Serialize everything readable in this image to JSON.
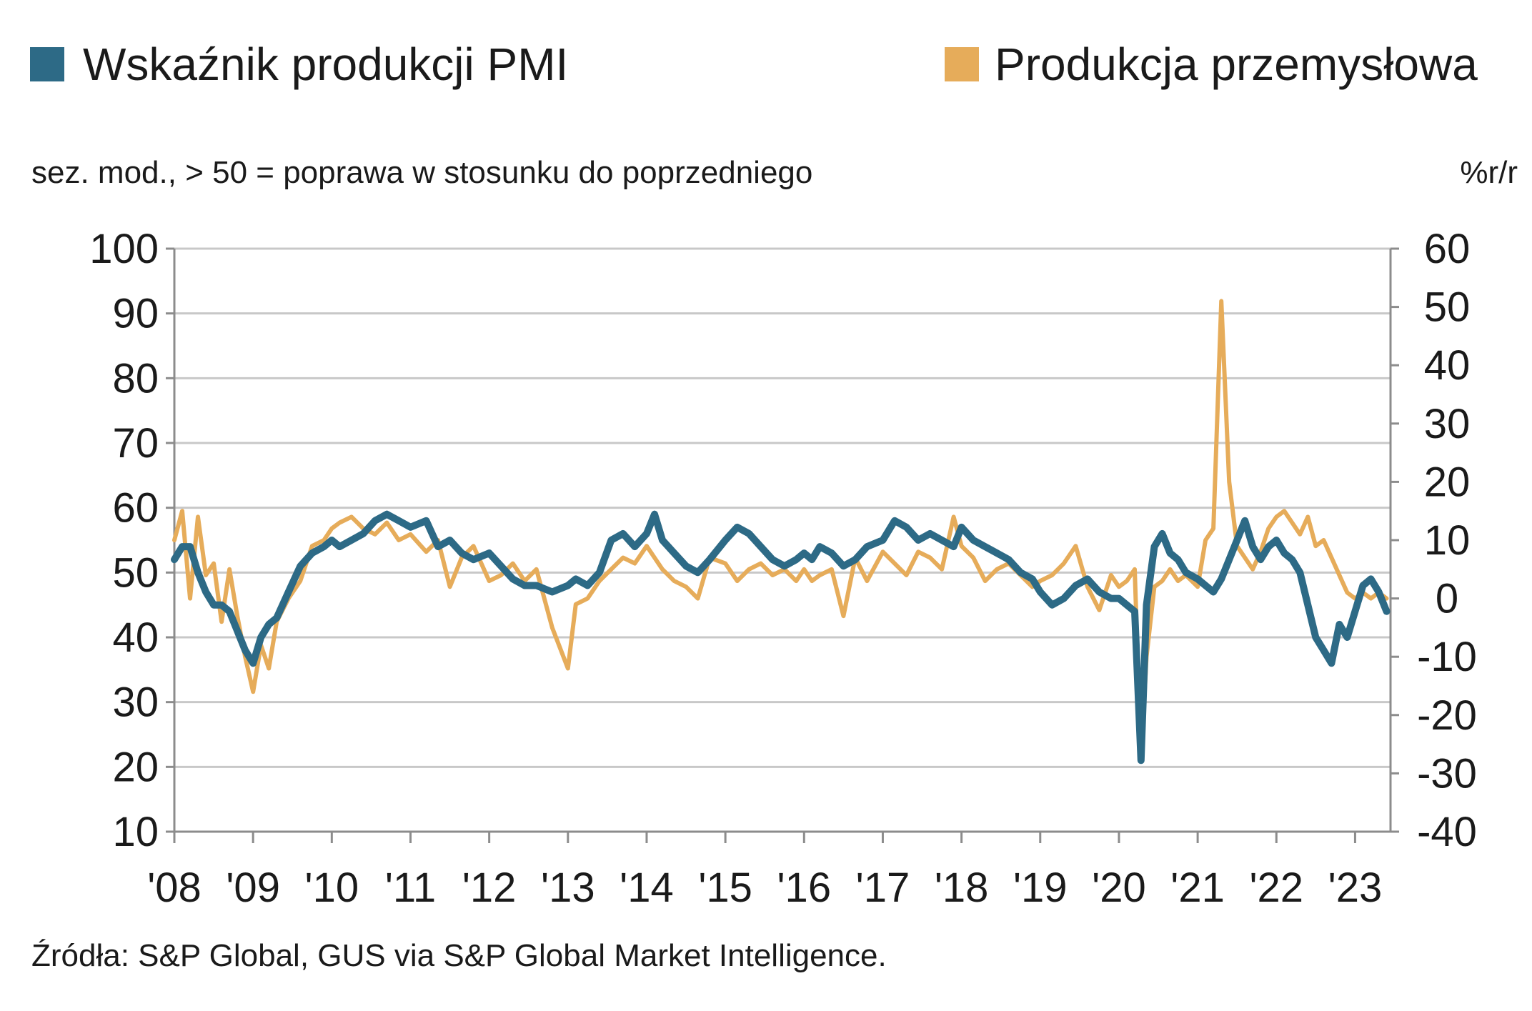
{
  "chart_data": {
    "type": "line",
    "legend": {
      "placement": "top",
      "items": [
        {
          "label": "Wskaźnik produkcji PMI",
          "color": "#2d6a86"
        },
        {
          "label": "Produkcja przemysłowa",
          "color": "#e6ac5a"
        }
      ]
    },
    "subtitle_left": "sez. mod., > 50 = poprawa w stosunku do poprzedniego",
    "subtitle_right": "%r/r",
    "source": "Źródła:  S&P Global, GUS via S&P Global Market Intelligence.",
    "grid": true,
    "x_axis": {
      "range": [
        2008.0,
        2023.45
      ],
      "ticks": [
        2008,
        2009,
        2010,
        2011,
        2012,
        2013,
        2014,
        2015,
        2016,
        2017,
        2018,
        2019,
        2020,
        2021,
        2022,
        2023
      ],
      "tick_labels": [
        "'08",
        "'09",
        "'10",
        "'11",
        "'12",
        "'13",
        "'14",
        "'15",
        "'16",
        "'17",
        "'18",
        "'19",
        "'20",
        "'21",
        "'22",
        "'23"
      ]
    },
    "y_axis_left": {
      "range": [
        10,
        100
      ],
      "ticks": [
        10,
        20,
        30,
        40,
        50,
        60,
        70,
        80,
        90,
        100
      ],
      "tick_labels": [
        "10",
        "20",
        "30",
        "40",
        "50",
        "60",
        "70",
        "80",
        "90",
        "100"
      ]
    },
    "y_axis_right": {
      "range": [
        -40,
        60
      ],
      "ticks": [
        -40,
        -30,
        -20,
        -10,
        0,
        10,
        20,
        30,
        40,
        50,
        60
      ],
      "tick_labels": [
        "-40",
        "-30",
        "-20",
        "-10",
        "0",
        "10",
        "20",
        "30",
        "40",
        "50",
        "60"
      ]
    },
    "series": [
      {
        "name": "Wskaźnik produkcji PMI",
        "axis": "left",
        "color": "#2d6a86",
        "x": [
          2008.0,
          2008.1,
          2008.2,
          2008.3,
          2008.4,
          2008.5,
          2008.6,
          2008.7,
          2008.8,
          2008.9,
          2009.0,
          2009.1,
          2009.2,
          2009.3,
          2009.45,
          2009.6,
          2009.75,
          2009.9,
          2010.0,
          2010.1,
          2010.25,
          2010.4,
          2010.55,
          2010.7,
          2010.85,
          2011.0,
          2011.2,
          2011.35,
          2011.5,
          2011.65,
          2011.8,
          2012.0,
          2012.15,
          2012.3,
          2012.45,
          2012.6,
          2012.8,
          2013.0,
          2013.1,
          2013.25,
          2013.4,
          2013.55,
          2013.7,
          2013.85,
          2014.0,
          2014.1,
          2014.2,
          2014.35,
          2014.5,
          2014.65,
          2014.8,
          2015.0,
          2015.15,
          2015.3,
          2015.45,
          2015.6,
          2015.75,
          2015.9,
          2016.0,
          2016.1,
          2016.2,
          2016.35,
          2016.5,
          2016.65,
          2016.8,
          2017.0,
          2017.15,
          2017.3,
          2017.45,
          2017.6,
          2017.75,
          2017.9,
          2018.0,
          2018.15,
          2018.3,
          2018.45,
          2018.6,
          2018.75,
          2018.9,
          2019.0,
          2019.15,
          2019.3,
          2019.45,
          2019.6,
          2019.75,
          2019.9,
          2020.0,
          2020.1,
          2020.2,
          2020.28,
          2020.35,
          2020.45,
          2020.55,
          2020.65,
          2020.75,
          2020.85,
          2021.0,
          2021.1,
          2021.2,
          2021.3,
          2021.4,
          2021.5,
          2021.6,
          2021.7,
          2021.8,
          2021.9,
          2022.0,
          2022.1,
          2022.2,
          2022.3,
          2022.4,
          2022.5,
          2022.6,
          2022.7,
          2022.8,
          2022.9,
          2023.0,
          2023.1,
          2023.2,
          2023.3,
          2023.4
        ],
        "y": [
          52,
          54,
          54,
          50,
          47,
          45,
          45,
          44,
          41,
          38,
          36,
          40,
          42,
          43,
          47,
          51,
          53,
          54,
          55,
          54,
          55,
          56,
          58,
          59,
          58,
          57,
          58,
          54,
          55,
          53,
          52,
          53,
          51,
          49,
          48,
          48,
          47,
          48,
          49,
          48,
          50,
          55,
          56,
          54,
          56,
          59,
          55,
          53,
          51,
          50,
          52,
          55,
          57,
          56,
          54,
          52,
          51,
          52,
          53,
          52,
          54,
          53,
          51,
          52,
          54,
          55,
          58,
          57,
          55,
          56,
          55,
          54,
          57,
          55,
          54,
          53,
          52,
          50,
          49,
          47,
          45,
          46,
          48,
          49,
          47,
          46,
          46,
          45,
          44,
          21,
          45,
          54,
          56,
          53,
          52,
          50,
          49,
          48,
          47,
          49,
          52,
          55,
          58,
          54,
          52,
          54,
          55,
          53,
          52,
          50,
          45,
          40,
          38,
          36,
          42,
          40,
          44,
          48,
          49,
          47,
          44
        ]
      },
      {
        "name": "Produkcja przemysłowa",
        "axis": "right",
        "color": "#e6ac5a",
        "x": [
          2008.0,
          2008.1,
          2008.2,
          2008.3,
          2008.4,
          2008.5,
          2008.6,
          2008.7,
          2008.8,
          2008.9,
          2009.0,
          2009.1,
          2009.2,
          2009.3,
          2009.45,
          2009.6,
          2009.75,
          2009.9,
          2010.0,
          2010.1,
          2010.25,
          2010.4,
          2010.55,
          2010.7,
          2010.85,
          2011.0,
          2011.2,
          2011.35,
          2011.5,
          2011.65,
          2011.8,
          2012.0,
          2012.15,
          2012.3,
          2012.45,
          2012.6,
          2012.8,
          2013.0,
          2013.1,
          2013.25,
          2013.4,
          2013.55,
          2013.7,
          2013.85,
          2014.0,
          2014.1,
          2014.2,
          2014.35,
          2014.5,
          2014.65,
          2014.8,
          2015.0,
          2015.15,
          2015.3,
          2015.45,
          2015.6,
          2015.75,
          2015.9,
          2016.0,
          2016.1,
          2016.2,
          2016.35,
          2016.5,
          2016.65,
          2016.8,
          2017.0,
          2017.15,
          2017.3,
          2017.45,
          2017.6,
          2017.75,
          2017.9,
          2018.0,
          2018.15,
          2018.3,
          2018.45,
          2018.6,
          2018.75,
          2018.9,
          2019.0,
          2019.15,
          2019.3,
          2019.45,
          2019.6,
          2019.75,
          2019.9,
          2020.0,
          2020.1,
          2020.2,
          2020.28,
          2020.35,
          2020.45,
          2020.55,
          2020.65,
          2020.75,
          2020.85,
          2021.0,
          2021.1,
          2021.2,
          2021.3,
          2021.4,
          2021.5,
          2021.6,
          2021.7,
          2021.8,
          2021.9,
          2022.0,
          2022.1,
          2022.2,
          2022.3,
          2022.4,
          2022.5,
          2022.6,
          2022.7,
          2022.8,
          2022.9,
          2023.0,
          2023.1,
          2023.2,
          2023.3,
          2023.4
        ],
        "y": [
          10,
          15,
          0,
          14,
          4,
          6,
          -4,
          5,
          -3,
          -10,
          -16,
          -8,
          -12,
          -4,
          0,
          3,
          9,
          10,
          12,
          13,
          14,
          12,
          11,
          13,
          10,
          11,
          8,
          10,
          2,
          7,
          9,
          3,
          4,
          6,
          3,
          5,
          -5,
          -12,
          -1,
          0,
          3,
          5,
          7,
          6,
          9,
          7,
          5,
          3,
          2,
          0,
          7,
          6,
          3,
          5,
          6,
          4,
          5,
          3,
          5,
          3,
          4,
          5,
          -3,
          7,
          3,
          8,
          6,
          4,
          8,
          7,
          5,
          14,
          9,
          7,
          3,
          5,
          6,
          4,
          2,
          3,
          4,
          6,
          9,
          2,
          -2,
          4,
          2,
          3,
          5,
          -28,
          -10,
          2,
          3,
          5,
          3,
          4,
          2,
          10,
          12,
          51,
          20,
          9,
          7,
          5,
          8,
          12,
          14,
          15,
          13,
          11,
          14,
          9,
          10,
          7,
          4,
          1,
          0,
          1,
          0,
          1,
          0
        ]
      }
    ]
  }
}
